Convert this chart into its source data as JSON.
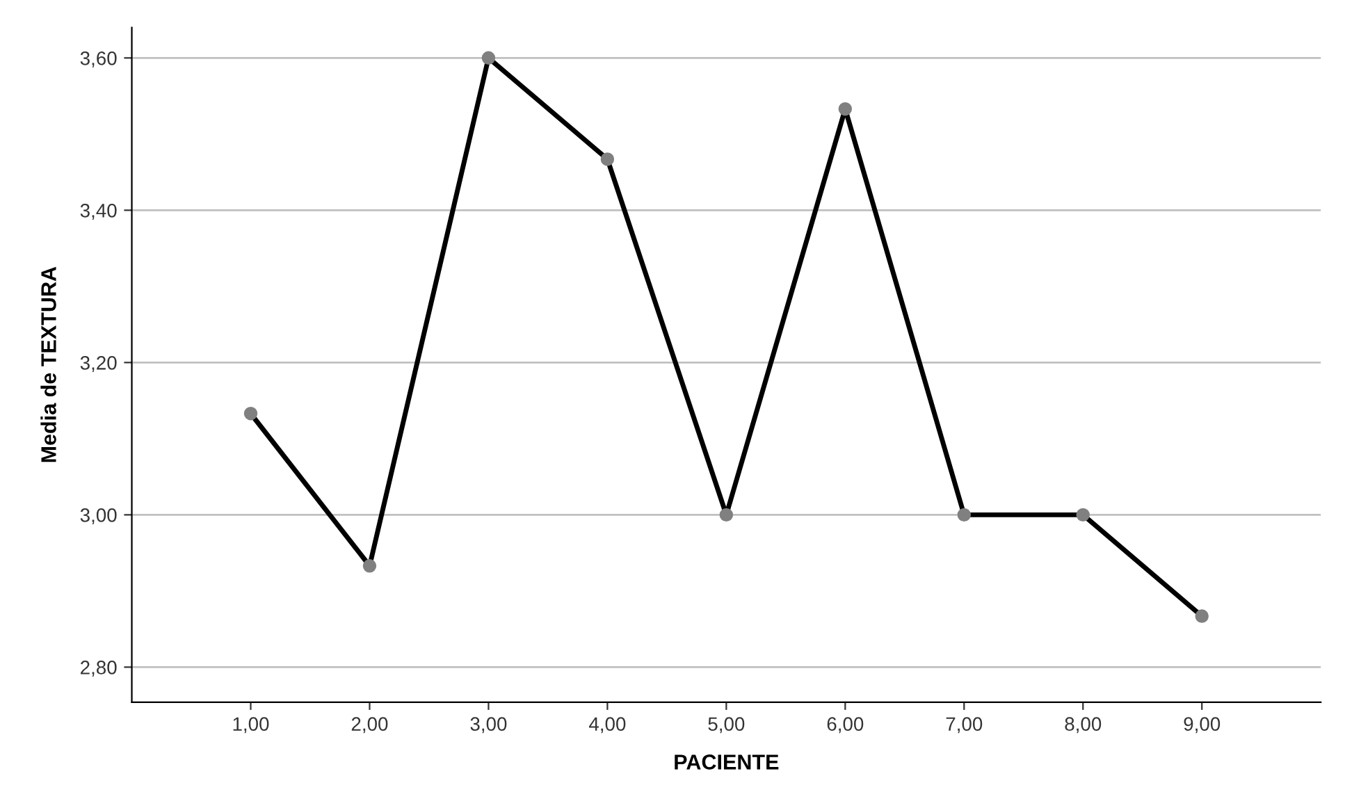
{
  "chart_data": {
    "type": "line",
    "xlabel": "PACIENTE",
    "ylabel": "Media de TEXTURA",
    "categories": [
      "1,00",
      "2,00",
      "3,00",
      "4,00",
      "5,00",
      "6,00",
      "7,00",
      "8,00",
      "9,00"
    ],
    "series": [
      {
        "color": "#000000",
        "values": [
          3.133,
          2.933,
          3.6,
          3.467,
          3.0,
          3.533,
          3.0,
          3.0,
          2.867
        ]
      }
    ],
    "ylim": [
      2.754,
      3.64
    ],
    "yticks": [
      {
        "value": 2.8,
        "label": "2,80"
      },
      {
        "value": 3.0,
        "label": "3,00"
      },
      {
        "value": 3.2,
        "label": "3,20"
      },
      {
        "value": 3.4,
        "label": "3,40"
      },
      {
        "value": 3.6,
        "label": "3,60"
      }
    ],
    "grid": "y",
    "marker": "circle",
    "line_style": "solid"
  }
}
